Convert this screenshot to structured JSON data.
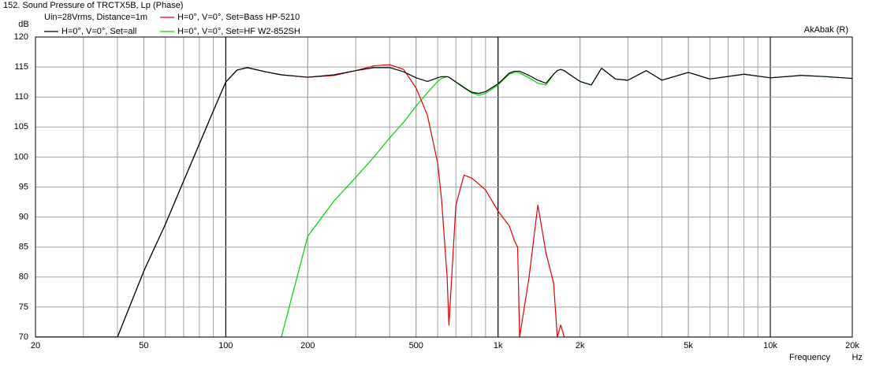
{
  "chart_data": {
    "type": "line",
    "title": "152. Sound Pressure of TRCTX5B, Lp (Phase)",
    "annotations": [
      "Uin=28Vrms, Distance=1m",
      "AkAbak (R)"
    ],
    "x_label": "Frequency",
    "x_unit": "Hz",
    "y_label": "dB",
    "x_scale": "log",
    "grid": true,
    "legend": "top-left",
    "x": [
      20,
      30,
      40,
      50,
      60,
      70,
      80,
      90,
      100,
      110,
      120,
      140,
      160,
      200,
      250,
      300,
      350,
      400,
      450,
      500,
      550,
      600,
      620,
      650,
      660,
      700,
      750,
      800,
      850,
      900,
      1000,
      1100,
      1150,
      1180,
      1200,
      1300,
      1400,
      1500,
      1600,
      1650,
      1700,
      1750,
      1800,
      2000,
      2200,
      2400,
      2700,
      3000,
      3500,
      4000,
      5000,
      6000,
      8000,
      10000,
      13000,
      16000,
      20000
    ],
    "series": [
      {
        "name": "H=0°, V=0°, Set=all",
        "color": "#000000",
        "values": [
          70,
          70,
          70,
          81,
          88.8,
          96,
          102.2,
          107.7,
          112.5,
          114.5,
          114.9,
          114.2,
          113.7,
          113.3,
          113.7,
          114.4,
          114.9,
          114.9,
          114.2,
          113.2,
          112.6,
          113.2,
          113.4,
          113.4,
          113.3,
          112.5,
          111.6,
          110.8,
          110.6,
          110.9,
          112.2,
          114.0,
          114.3,
          114.3,
          114.3,
          113.6,
          112.8,
          112.3,
          113.8,
          114.4,
          114.6,
          114.4,
          114.0,
          112.6,
          112.0,
          114.8,
          113.0,
          112.8,
          114.4,
          112.8,
          114.1,
          113.0,
          113.8,
          113.2,
          113.6,
          113.4,
          113.1
        ]
      },
      {
        "name": "H=0°, V=0°, Set=Bass HP-5210",
        "color": "#e00000",
        "values": [
          70,
          70,
          70,
          81,
          88.8,
          96,
          102.2,
          107.7,
          112.5,
          114.5,
          114.9,
          114.2,
          113.7,
          113.3,
          113.6,
          114.4,
          115.2,
          115.4,
          114.6,
          111.5,
          107,
          99,
          93,
          80,
          72,
          92,
          97,
          96.5,
          95.5,
          94.5,
          91,
          88.5,
          86,
          85,
          70,
          80,
          92,
          84,
          79,
          70,
          72,
          70,
          70,
          70,
          70,
          70,
          70,
          70,
          70,
          70,
          70,
          70,
          70,
          70,
          70,
          70,
          70
        ]
      },
      {
        "name": "H=0°, V=0°, Set=HF W2-852SH",
        "color": "#00d000",
        "values": [
          70,
          70,
          70,
          70,
          70,
          70,
          70,
          70,
          70,
          70,
          70,
          70,
          70,
          86.8,
          92.7,
          96.6,
          100,
          103.2,
          105.8,
          108.5,
          110.7,
          112.6,
          113.1,
          113.4,
          113.3,
          112.5,
          111.5,
          110.7,
          110.3,
          110.6,
          112.0,
          113.8,
          114.1,
          114.1,
          114.0,
          113.2,
          112.3,
          112.0,
          113.8,
          114.4,
          114.6,
          114.4,
          114.0,
          112.6,
          112.0,
          114.8,
          113.0,
          112.8,
          114.4,
          112.8,
          114.1,
          113.0,
          113.8,
          113.2,
          113.6,
          113.4,
          113.1
        ]
      }
    ],
    "xlim": [
      20,
      20000
    ],
    "xticks": [
      20,
      50,
      100,
      200,
      500,
      {
        "value": 1000,
        "label": "1k"
      },
      {
        "value": 2000,
        "label": "2k"
      },
      {
        "value": 5000,
        "label": "5k"
      },
      {
        "value": 10000,
        "label": "10k"
      },
      {
        "value": 20000,
        "label": "20k"
      }
    ],
    "ylim": [
      70,
      120
    ],
    "yticks": [
      70,
      75,
      80,
      85,
      90,
      95,
      100,
      105,
      110,
      115,
      120
    ]
  }
}
